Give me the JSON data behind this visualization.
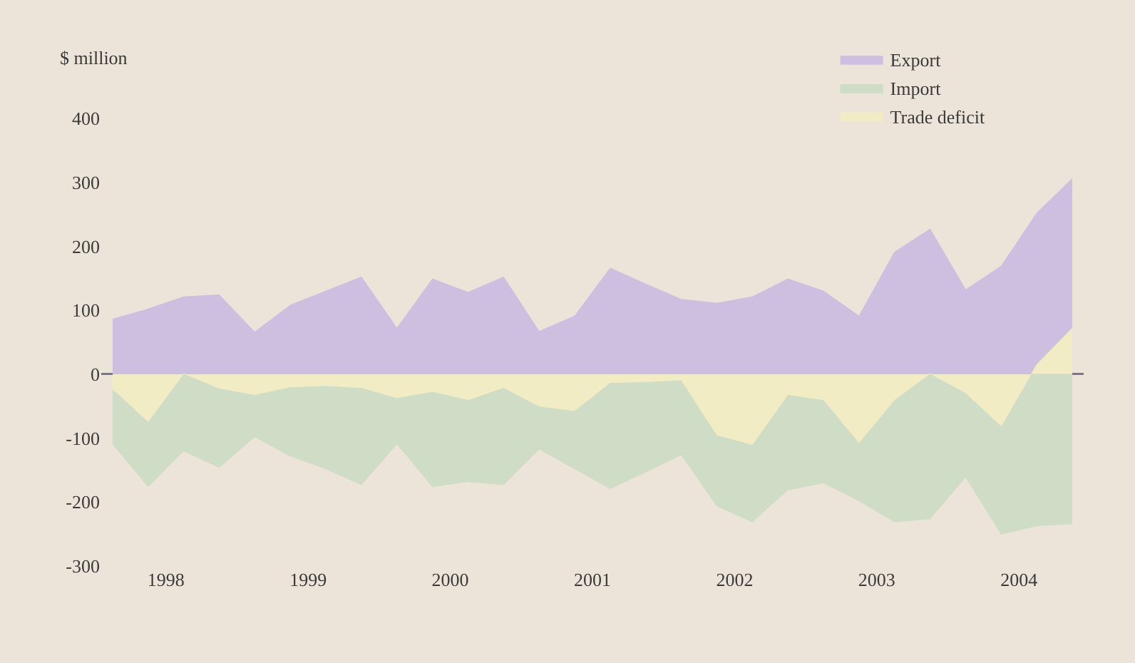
{
  "chart_data": {
    "type": "area",
    "ylabel": "$ million",
    "x": [
      1998,
      1998.25,
      1998.5,
      1998.75,
      1999,
      1999.25,
      1999.5,
      1999.75,
      2000,
      2000.25,
      2000.5,
      2000.75,
      2001,
      2001.25,
      2001.5,
      2001.75,
      2002,
      2002.25,
      2002.5,
      2002.75,
      2003,
      2003.25,
      2003.5,
      2003.75,
      2004,
      2004.25,
      2004.5,
      2004.75
    ],
    "series": [
      {
        "name": "Export",
        "color": "#cdbfe0",
        "values": [
          86,
          102,
          121,
          124,
          66,
          108,
          130,
          152,
          72,
          149,
          128,
          152,
          67,
          91,
          166,
          141,
          117,
          111,
          121,
          149,
          130,
          91,
          191,
          227,
          132,
          169,
          252,
          306
        ]
      },
      {
        "name": "Import",
        "color": "#cfdcc6",
        "values": [
          -109,
          -176,
          -120,
          -146,
          -98,
          -128,
          -148,
          -173,
          -109,
          -176,
          -168,
          -173,
          -117,
          -148,
          -179,
          -153,
          -126,
          -206,
          -231,
          -181,
          -170,
          -198,
          -231,
          -226,
          -161,
          -250,
          -237,
          -234
        ]
      },
      {
        "name": "Trade deficit",
        "color": "#f2ecc4",
        "values": [
          -23,
          -74,
          1,
          -22,
          -32,
          -20,
          -18,
          -21,
          -37,
          -27,
          -40,
          -21,
          -50,
          -57,
          -13,
          -12,
          -9,
          -95,
          -110,
          -32,
          -40,
          -107,
          -40,
          1,
          -29,
          -81,
          15,
          72
        ]
      }
    ],
    "xlim": [
      1997.92,
      2004.83
    ],
    "xticks": [
      {
        "value": 1998.375,
        "label": "1998"
      },
      {
        "value": 1999.375,
        "label": "1999"
      },
      {
        "value": 2000.375,
        "label": "2000"
      },
      {
        "value": 2001.375,
        "label": "2001"
      },
      {
        "value": 2002.375,
        "label": "2002"
      },
      {
        "value": 2003.375,
        "label": "2003"
      },
      {
        "value": 2004.375,
        "label": "2004"
      }
    ],
    "ylim": [
      -300,
      400
    ],
    "yticks": [
      -300,
      -200,
      -100,
      0,
      100,
      200,
      300,
      400
    ],
    "legend": "top right"
  }
}
